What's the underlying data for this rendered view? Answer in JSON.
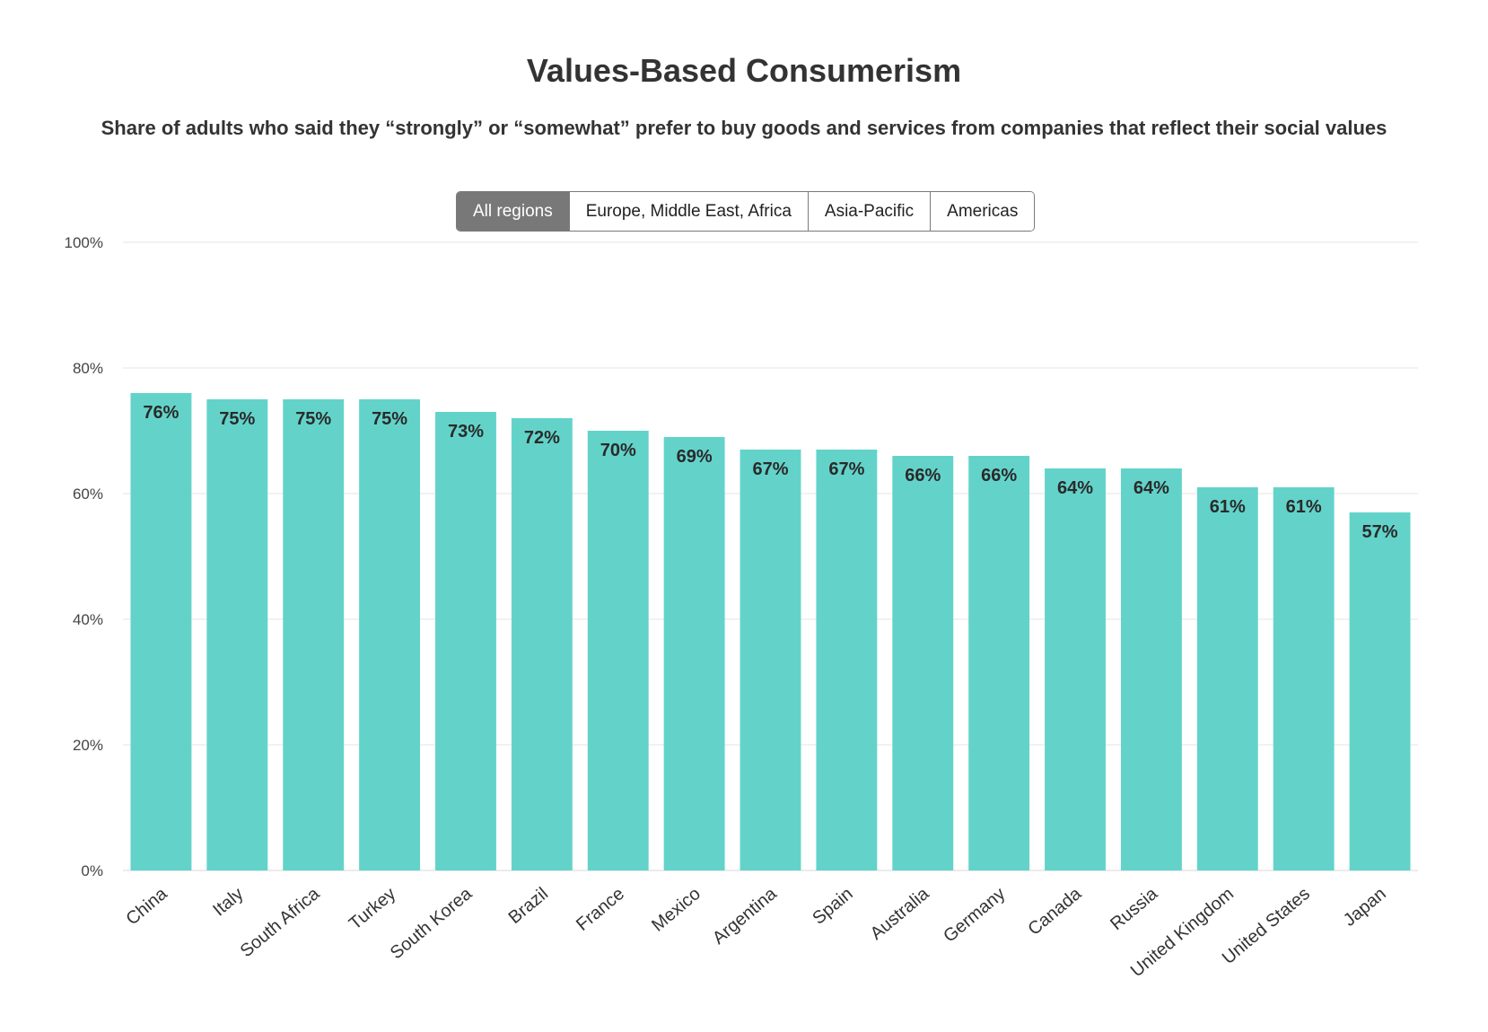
{
  "header": {
    "title": "Values-Based Consumerism",
    "subtitle": "Share of adults who said they “strongly” or “somewhat” prefer to buy goods and services from companies that reflect their social values"
  },
  "filters": {
    "options": [
      "All regions",
      "Europe, Middle East, Africa",
      "Asia-Pacific",
      "Americas"
    ],
    "selected": "All regions"
  },
  "colors": {
    "bar": "#63d3ca",
    "grid": "#e6e6e6",
    "active_button": "#787878"
  },
  "chart_data": {
    "type": "bar",
    "title": "Values-Based Consumerism",
    "subtitle": "Share of adults who said they “strongly” or “somewhat” prefer to buy goods and services from companies that reflect their social values",
    "xlabel": "",
    "ylabel": "",
    "categories": [
      "China",
      "Italy",
      "South Africa",
      "Turkey",
      "South Korea",
      "Brazil",
      "France",
      "Mexico",
      "Argentina",
      "Spain",
      "Australia",
      "Germany",
      "Canada",
      "Russia",
      "United Kingdom",
      "United States",
      "Japan"
    ],
    "values": [
      76,
      75,
      75,
      75,
      73,
      72,
      70,
      69,
      67,
      67,
      66,
      66,
      64,
      64,
      61,
      61,
      57
    ],
    "data_labels": [
      "76%",
      "75%",
      "75%",
      "75%",
      "73%",
      "72%",
      "70%",
      "69%",
      "67%",
      "67%",
      "66%",
      "66%",
      "64%",
      "64%",
      "61%",
      "61%",
      "57%"
    ],
    "ylim": [
      0,
      100
    ],
    "yticks": [
      0,
      20,
      40,
      60,
      80,
      100
    ],
    "ytick_labels": [
      "0%",
      "20%",
      "40%",
      "60%",
      "80%",
      "100%"
    ],
    "grid": true,
    "legend": "none"
  }
}
